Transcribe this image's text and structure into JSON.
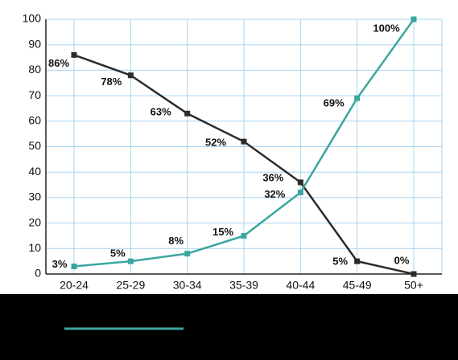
{
  "chart_data": {
    "type": "line",
    "categories": [
      "20-24",
      "25-29",
      "30-34",
      "35-39",
      "40-44",
      "45-49",
      "50+"
    ],
    "series": [
      {
        "color": "#2b2b2b",
        "values": [
          86,
          78,
          63,
          52,
          36,
          5,
          0
        ],
        "value_labels": [
          "86%",
          "78%",
          "63%",
          "52%",
          "36%",
          "5%",
          "0%"
        ]
      },
      {
        "color": "#3aa6a0",
        "values": [
          3,
          5,
          8,
          15,
          32,
          69,
          100
        ],
        "value_labels": [
          "3%",
          "5%",
          "8%",
          "15%",
          "32%",
          "69%",
          "100%"
        ]
      }
    ],
    "ylim": [
      0,
      100
    ],
    "yticks": [
      0,
      10,
      20,
      30,
      40,
      50,
      60,
      70,
      80,
      90,
      100
    ],
    "grid": true
  }
}
